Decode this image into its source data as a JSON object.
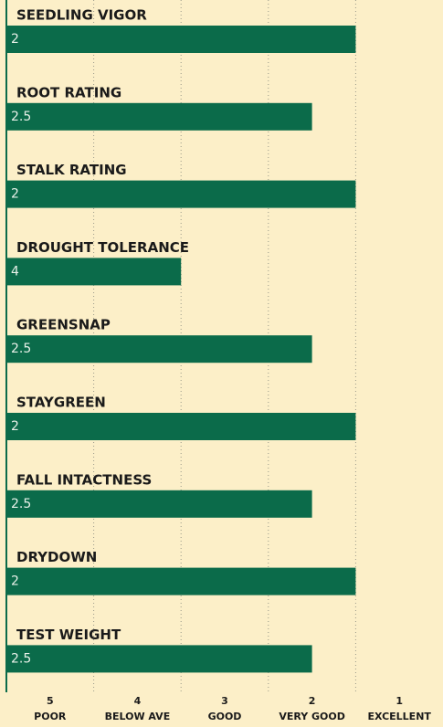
{
  "chart_data": {
    "type": "bar",
    "orientation": "horizontal",
    "categories": [
      "SEEDLING VIGOR",
      "ROOT RATING",
      "STALK RATING",
      "DROUGHT TOLERANCE",
      "GREENSNAP",
      "STAYGREEN",
      "FALL INTACTNESS",
      "DRYDOWN",
      "TEST WEIGHT"
    ],
    "values": [
      2,
      2.5,
      2,
      4,
      2.5,
      2,
      2.5,
      2,
      2.5
    ],
    "color": "#0b6b4a",
    "xlim": [
      6,
      1
    ],
    "xticks": [
      5,
      4,
      3,
      2,
      1
    ],
    "xtick_names": [
      "POOR",
      "BELOW AVE",
      "GOOD",
      "VERY GOOD",
      "EXCELLENT"
    ],
    "grid": true
  }
}
